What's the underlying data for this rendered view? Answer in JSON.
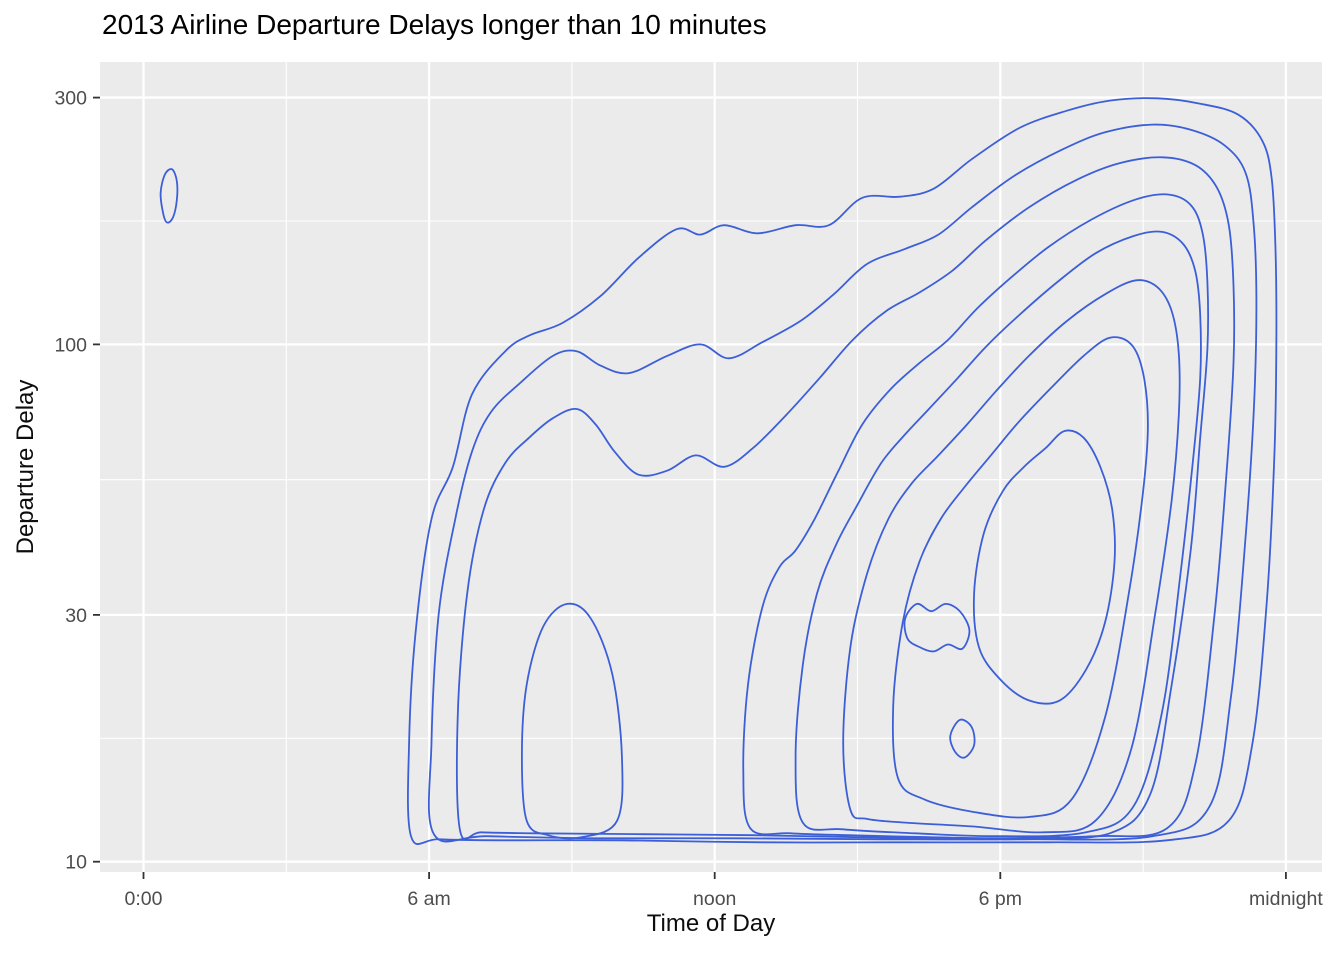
{
  "chart_data": {
    "type": "contour",
    "geom": "2d-density-contours",
    "title": "2013 Airline Departure Delays longer than 10 minutes",
    "xlabel": "Time of Day",
    "ylabel": "Departure Delay",
    "legend": "none",
    "grid": "on",
    "x_axis": {
      "scale": "linear",
      "unit": "hour-of-day",
      "range": [
        -0.9,
        24.75
      ],
      "ticks": [
        {
          "value": 0,
          "label": "0:00"
        },
        {
          "value": 6,
          "label": "6 am"
        },
        {
          "value": 12,
          "label": "noon"
        },
        {
          "value": 18,
          "label": "6 pm"
        },
        {
          "value": 24,
          "label": "midnight"
        }
      ],
      "minor_ticks": [
        3,
        9,
        15,
        21
      ]
    },
    "y_axis": {
      "scale": "log10",
      "unit": "minutes",
      "range": [
        9.6,
        350
      ],
      "ticks": [
        {
          "value": 10,
          "label": "10"
        },
        {
          "value": 30,
          "label": "30"
        },
        {
          "value": 100,
          "label": "100"
        },
        {
          "value": 300,
          "label": "300"
        }
      ],
      "minor_ticks": [
        17.32,
        54.77,
        173.2
      ]
    },
    "style": {
      "panel_bg": "#EBEBEB",
      "grid_color": "#FFFFFF",
      "contour_color": "#3C5FD8",
      "tick_label_color": "#4D4D4D",
      "tick_mark_color": "#333333",
      "axis_label_color": "#0d0d0d",
      "title_color": "#000000"
    },
    "contours": [
      {
        "name": "contour-blob-early-morning",
        "points": [
          [
            0.42,
            178
          ],
          [
            0.36,
            196
          ],
          [
            0.45,
            213
          ],
          [
            0.6,
            218
          ],
          [
            0.7,
            207
          ],
          [
            0.7,
            190
          ],
          [
            0.62,
            176
          ],
          [
            0.5,
            172
          ]
        ]
      },
      {
        "name": "contour-level-1",
        "points": [
          [
            5.62,
            11.2
          ],
          [
            5.58,
            17
          ],
          [
            5.72,
            28
          ],
          [
            6.05,
            46
          ],
          [
            6.5,
            58
          ],
          [
            6.9,
            80
          ],
          [
            7.6,
            97
          ],
          [
            8.1,
            104
          ],
          [
            8.8,
            110
          ],
          [
            9.6,
            124
          ],
          [
            10.4,
            147
          ],
          [
            11.2,
            167
          ],
          [
            11.7,
            163
          ],
          [
            12.2,
            170
          ],
          [
            12.9,
            164
          ],
          [
            13.7,
            170
          ],
          [
            14.4,
            170
          ],
          [
            15.1,
            192
          ],
          [
            15.9,
            193
          ],
          [
            16.6,
            200
          ],
          [
            17.4,
            228
          ],
          [
            18.4,
            262
          ],
          [
            19.4,
            283
          ],
          [
            20.3,
            296
          ],
          [
            21.3,
            299
          ],
          [
            22.2,
            292
          ],
          [
            23.0,
            278
          ],
          [
            23.5,
            248
          ],
          [
            23.7,
            210
          ],
          [
            23.78,
            155
          ],
          [
            23.8,
            105
          ],
          [
            23.76,
            62
          ],
          [
            23.6,
            32
          ],
          [
            23.3,
            17
          ],
          [
            22.8,
            12
          ],
          [
            21.5,
            11.0
          ],
          [
            19.0,
            10.9
          ],
          [
            16.0,
            10.9
          ],
          [
            13.0,
            10.9
          ],
          [
            10.0,
            11.0
          ],
          [
            7.5,
            11.0
          ],
          [
            6.2,
            11.05
          ]
        ]
      },
      {
        "name": "contour-level-2",
        "points": [
          [
            6.1,
            11.3
          ],
          [
            6.05,
            17
          ],
          [
            6.2,
            30
          ],
          [
            6.55,
            46
          ],
          [
            6.9,
            62
          ],
          [
            7.3,
            74
          ],
          [
            7.9,
            84
          ],
          [
            8.6,
            95
          ],
          [
            9.1,
            97
          ],
          [
            9.6,
            91
          ],
          [
            10.2,
            88
          ],
          [
            11.0,
            95
          ],
          [
            11.7,
            100
          ],
          [
            12.3,
            94
          ],
          [
            13.0,
            101
          ],
          [
            13.8,
            111
          ],
          [
            14.5,
            125
          ],
          [
            15.2,
            143
          ],
          [
            16.0,
            153
          ],
          [
            16.7,
            163
          ],
          [
            17.4,
            184
          ],
          [
            18.3,
            212
          ],
          [
            19.3,
            238
          ],
          [
            20.2,
            257
          ],
          [
            21.2,
            266
          ],
          [
            22.0,
            260
          ],
          [
            22.7,
            243
          ],
          [
            23.15,
            215
          ],
          [
            23.32,
            172
          ],
          [
            23.38,
            122
          ],
          [
            23.33,
            76
          ],
          [
            23.15,
            42
          ],
          [
            22.85,
            21
          ],
          [
            22.4,
            12.8
          ],
          [
            21.2,
            11.2
          ],
          [
            18.5,
            11.05
          ],
          [
            15.5,
            11.05
          ],
          [
            12.5,
            11.1
          ],
          [
            9.5,
            11.1
          ],
          [
            7.2,
            11.2
          ]
        ]
      },
      {
        "name": "contour-level-3",
        "points": [
          [
            6.65,
            11.5
          ],
          [
            6.6,
            19
          ],
          [
            6.8,
            33
          ],
          [
            7.15,
            48
          ],
          [
            7.6,
            59
          ],
          [
            8.1,
            66
          ],
          [
            8.6,
            72
          ],
          [
            9.1,
            75
          ],
          [
            9.5,
            70
          ],
          [
            9.9,
            62
          ],
          [
            10.4,
            56
          ],
          [
            11.0,
            57
          ],
          [
            11.6,
            61
          ],
          [
            12.2,
            58
          ],
          [
            12.8,
            63
          ],
          [
            13.5,
            73
          ],
          [
            14.2,
            86
          ],
          [
            14.9,
            102
          ],
          [
            15.6,
            116
          ],
          [
            16.3,
            126
          ],
          [
            17.0,
            139
          ],
          [
            17.7,
            159
          ],
          [
            18.6,
            184
          ],
          [
            19.6,
            208
          ],
          [
            20.5,
            224
          ],
          [
            21.4,
            230
          ],
          [
            22.1,
            222
          ],
          [
            22.55,
            201
          ],
          [
            22.8,
            170
          ],
          [
            22.9,
            130
          ],
          [
            22.9,
            92
          ],
          [
            22.75,
            56
          ],
          [
            22.5,
            30
          ],
          [
            22.1,
            15.5
          ],
          [
            21.5,
            11.6
          ],
          [
            20.0,
            11.2
          ],
          [
            17.5,
            11.1
          ],
          [
            15.0,
            11.15
          ],
          [
            12.8,
            11.25
          ],
          [
            10.5,
            11.3
          ],
          [
            8.2,
            11.35
          ],
          [
            7.1,
            11.4
          ]
        ]
      },
      {
        "name": "contour-level-4-left-lobe",
        "points": [
          [
            8.05,
            12
          ],
          [
            7.95,
            16
          ],
          [
            8.05,
            22
          ],
          [
            8.4,
            28.5
          ],
          [
            8.9,
            31.5
          ],
          [
            9.4,
            29.5
          ],
          [
            9.85,
            23
          ],
          [
            10.05,
            16
          ],
          [
            9.95,
            12
          ],
          [
            9.2,
            11.15
          ],
          [
            8.5,
            11.25
          ]
        ]
      },
      {
        "name": "contour-level-4",
        "points": [
          [
            12.75,
            11.6
          ],
          [
            12.6,
            15
          ],
          [
            12.7,
            22
          ],
          [
            13.0,
            31
          ],
          [
            13.35,
            37
          ],
          [
            13.7,
            40
          ],
          [
            14.1,
            46
          ],
          [
            14.6,
            57
          ],
          [
            15.1,
            70
          ],
          [
            15.7,
            82
          ],
          [
            16.3,
            92
          ],
          [
            16.9,
            102
          ],
          [
            17.5,
            117
          ],
          [
            18.2,
            134
          ],
          [
            19.0,
            154
          ],
          [
            19.9,
            174
          ],
          [
            20.8,
            190
          ],
          [
            21.5,
            195
          ],
          [
            22.0,
            186
          ],
          [
            22.25,
            164
          ],
          [
            22.35,
            132
          ],
          [
            22.35,
            98
          ],
          [
            22.2,
            66
          ],
          [
            22.0,
            40
          ],
          [
            21.6,
            22
          ],
          [
            21.15,
            13.5
          ],
          [
            20.3,
            11.35
          ],
          [
            18.5,
            11.1
          ],
          [
            16.5,
            11.15
          ],
          [
            14.8,
            11.25
          ],
          [
            13.6,
            11.35
          ]
        ]
      },
      {
        "name": "contour-level-5",
        "points": [
          [
            13.85,
            11.9
          ],
          [
            13.7,
            16
          ],
          [
            13.85,
            24
          ],
          [
            14.15,
            33
          ],
          [
            14.55,
            41
          ],
          [
            15.0,
            49
          ],
          [
            15.5,
            59
          ],
          [
            16.0,
            67
          ],
          [
            16.5,
            75
          ],
          [
            17.1,
            86
          ],
          [
            17.7,
            99
          ],
          [
            18.4,
            114
          ],
          [
            19.2,
            132
          ],
          [
            20.0,
            150
          ],
          [
            20.8,
            162
          ],
          [
            21.4,
            165
          ],
          [
            21.85,
            156
          ],
          [
            22.1,
            138
          ],
          [
            22.2,
            114
          ],
          [
            22.2,
            86
          ],
          [
            22.05,
            60
          ],
          [
            21.8,
            37
          ],
          [
            21.4,
            19.5
          ],
          [
            20.8,
            12.8
          ],
          [
            19.8,
            11.4
          ],
          [
            18.0,
            11.2
          ],
          [
            16.2,
            11.35
          ],
          [
            14.7,
            11.55
          ]
        ]
      },
      {
        "name": "contour-level-6",
        "points": [
          [
            14.85,
            12.6
          ],
          [
            14.7,
            17
          ],
          [
            14.85,
            26
          ],
          [
            15.2,
            36
          ],
          [
            15.65,
            46
          ],
          [
            16.15,
            54
          ],
          [
            16.7,
            61
          ],
          [
            17.3,
            70
          ],
          [
            17.9,
            81
          ],
          [
            18.6,
            95
          ],
          [
            19.4,
            111
          ],
          [
            20.2,
            125
          ],
          [
            20.85,
            133
          ],
          [
            21.3,
            129
          ],
          [
            21.6,
            116
          ],
          [
            21.75,
            96
          ],
          [
            21.75,
            73
          ],
          [
            21.6,
            50
          ],
          [
            21.25,
            30
          ],
          [
            20.75,
            16.5
          ],
          [
            20.0,
            12.0
          ],
          [
            18.9,
            11.4
          ],
          [
            17.4,
            11.7
          ],
          [
            16.0,
            11.9
          ],
          [
            15.2,
            12.1
          ]
        ]
      },
      {
        "name": "contour-level-7",
        "points": [
          [
            15.85,
            14.5
          ],
          [
            15.75,
            20
          ],
          [
            15.95,
            29
          ],
          [
            16.3,
            38
          ],
          [
            16.75,
            46
          ],
          [
            17.25,
            53
          ],
          [
            17.8,
            61
          ],
          [
            18.4,
            71
          ],
          [
            19.1,
            83
          ],
          [
            19.75,
            95
          ],
          [
            20.3,
            103
          ],
          [
            20.75,
            100
          ],
          [
            21.0,
            88
          ],
          [
            21.1,
            70
          ],
          [
            21.0,
            52
          ],
          [
            20.7,
            33
          ],
          [
            20.2,
            19
          ],
          [
            19.5,
            13.2
          ],
          [
            18.6,
            12.2
          ],
          [
            17.4,
            12.5
          ],
          [
            16.4,
            13.2
          ]
        ]
      },
      {
        "name": "contour-level-8-core",
        "points": [
          [
            17.55,
            26
          ],
          [
            17.45,
            33
          ],
          [
            17.65,
            43
          ],
          [
            18.05,
            52
          ],
          [
            18.5,
            58
          ],
          [
            18.95,
            63
          ],
          [
            19.35,
            68
          ],
          [
            19.75,
            66
          ],
          [
            20.1,
            58
          ],
          [
            20.35,
            48
          ],
          [
            20.4,
            38
          ],
          [
            20.2,
            29
          ],
          [
            19.8,
            23.5
          ],
          [
            19.25,
            20.5
          ],
          [
            18.6,
            20.5
          ],
          [
            18.0,
            22.5
          ]
        ]
      },
      {
        "name": "contour-inner-ring",
        "points": [
          [
            16.05,
            27
          ],
          [
            16.0,
            29.5
          ],
          [
            16.25,
            31.5
          ],
          [
            16.55,
            30.5
          ],
          [
            16.85,
            31.5
          ],
          [
            17.15,
            30.5
          ],
          [
            17.35,
            28
          ],
          [
            17.2,
            25.8
          ],
          [
            16.9,
            26.3
          ],
          [
            16.6,
            25.5
          ],
          [
            16.3,
            26.0
          ]
        ]
      },
      {
        "name": "contour-inner-notch",
        "points": [
          [
            17.05,
            16.3
          ],
          [
            16.95,
            17.5
          ],
          [
            17.15,
            18.8
          ],
          [
            17.4,
            18.2
          ],
          [
            17.45,
            16.8
          ],
          [
            17.25,
            15.9
          ]
        ]
      }
    ]
  }
}
